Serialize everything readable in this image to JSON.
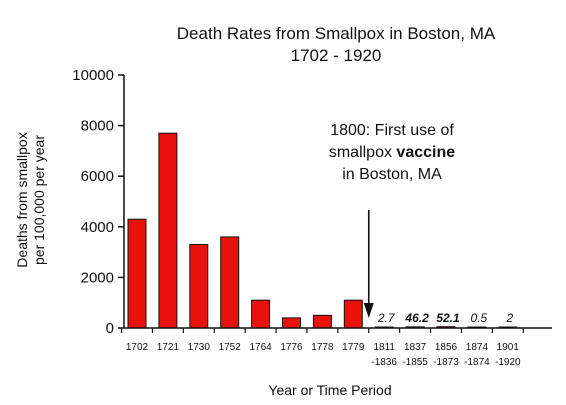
{
  "chart_data": {
    "type": "bar",
    "title": [
      "Death Rates from Smallpox in Boston, MA",
      "1702 - 1920"
    ],
    "ylabel": [
      "Deaths from smallpox",
      "per 100,000 per year"
    ],
    "xlabel": "Year or Time Period",
    "ylim": [
      0,
      10000
    ],
    "yticks": [
      "0",
      "2000",
      "4000",
      "6000",
      "8000",
      "10000"
    ],
    "bar_color": "#e8120c",
    "categories": [
      [
        "1702"
      ],
      [
        "1721"
      ],
      [
        "1730"
      ],
      [
        "1752"
      ],
      [
        "1764"
      ],
      [
        "1776"
      ],
      [
        "1778"
      ],
      [
        "1779"
      ],
      [
        "1811",
        "-1836"
      ],
      [
        "1837",
        "-1855"
      ],
      [
        "1856",
        "-1873"
      ],
      [
        "1874",
        "-1874"
      ],
      [
        "1901",
        "-1920"
      ]
    ],
    "values": [
      4300,
      7700,
      3300,
      3600,
      1100,
      400,
      500,
      1100,
      2.7,
      46.2,
      52.1,
      0.5,
      2
    ],
    "data_labels": [
      {
        "index": 8,
        "text": "2.7",
        "bold": false
      },
      {
        "index": 9,
        "text": "46.2",
        "bold": true
      },
      {
        "index": 10,
        "text": "52.1",
        "bold": true
      },
      {
        "index": 11,
        "text": "0.5",
        "bold": false
      },
      {
        "index": 12,
        "text": "2",
        "bold": false
      }
    ],
    "annotation": {
      "lines": [
        [
          {
            "text": "1800:  First use of",
            "bold": false
          }
        ],
        [
          {
            "text": "smallpox ",
            "bold": false
          },
          {
            "text": "vaccine",
            "bold": true
          }
        ],
        [
          {
            "text": "in Boston, MA",
            "bold": false
          }
        ]
      ],
      "arrow_at": 1800
    }
  }
}
